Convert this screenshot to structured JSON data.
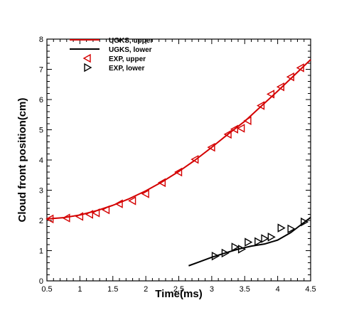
{
  "chart_data": {
    "type": "line",
    "title": "",
    "xlabel": "Time(ms)",
    "ylabel": "Cloud front position(cm)",
    "xlim": [
      0.5,
      4.5
    ],
    "ylim": [
      0,
      8
    ],
    "x_ticks": [
      "0.5",
      "1",
      "1.5",
      "2",
      "2.5",
      "3",
      "3.5",
      "4",
      "4.5"
    ],
    "y_ticks": [
      "0",
      "1",
      "2",
      "3",
      "4",
      "5",
      "6",
      "7",
      "8"
    ],
    "grid": false,
    "legend_position": "top-left",
    "series": [
      {
        "name": "UGKS, upper",
        "kind": "line",
        "color": "#d40000",
        "x": [
          0.5,
          0.75,
          1.0,
          1.25,
          1.5,
          1.75,
          2.0,
          2.25,
          2.5,
          2.75,
          3.0,
          3.25,
          3.5,
          3.75,
          4.0,
          4.25,
          4.5
        ],
        "y": [
          2.05,
          2.09,
          2.18,
          2.32,
          2.5,
          2.72,
          2.98,
          3.28,
          3.62,
          4.0,
          4.42,
          4.86,
          5.28,
          5.78,
          6.28,
          6.8,
          7.32
        ]
      },
      {
        "name": "UGKS, lower",
        "kind": "line",
        "color": "#000000",
        "x": [
          2.65,
          2.8,
          3.0,
          3.2,
          3.4,
          3.6,
          3.8,
          4.0,
          4.2,
          4.35,
          4.5
        ],
        "y": [
          0.5,
          0.62,
          0.78,
          0.92,
          1.05,
          1.15,
          1.22,
          1.35,
          1.6,
          1.85,
          2.1
        ]
      },
      {
        "name": "EXP, upper",
        "kind": "marker",
        "marker": "triangle-left",
        "color": "#d40000",
        "x": [
          0.55,
          0.8,
          1.0,
          1.15,
          1.25,
          1.4,
          1.6,
          1.8,
          2.0,
          2.25,
          2.5,
          2.75,
          3.0,
          3.25,
          3.35,
          3.45,
          3.55,
          3.75,
          3.9,
          4.05,
          4.2,
          4.35
        ],
        "y": [
          2.05,
          2.08,
          2.13,
          2.2,
          2.25,
          2.35,
          2.55,
          2.65,
          2.88,
          3.25,
          3.6,
          4.02,
          4.42,
          4.85,
          5.02,
          5.05,
          5.3,
          5.8,
          6.18,
          6.42,
          6.75,
          7.05
        ]
      },
      {
        "name": "EXP, lower",
        "kind": "marker",
        "marker": "triangle-right",
        "color": "#000000",
        "x": [
          3.05,
          3.2,
          3.35,
          3.45,
          3.55,
          3.7,
          3.8,
          3.9,
          4.05,
          4.2,
          4.4
        ],
        "y": [
          0.82,
          0.92,
          1.12,
          1.05,
          1.28,
          1.3,
          1.4,
          1.45,
          1.75,
          1.72,
          1.95
        ]
      }
    ]
  }
}
